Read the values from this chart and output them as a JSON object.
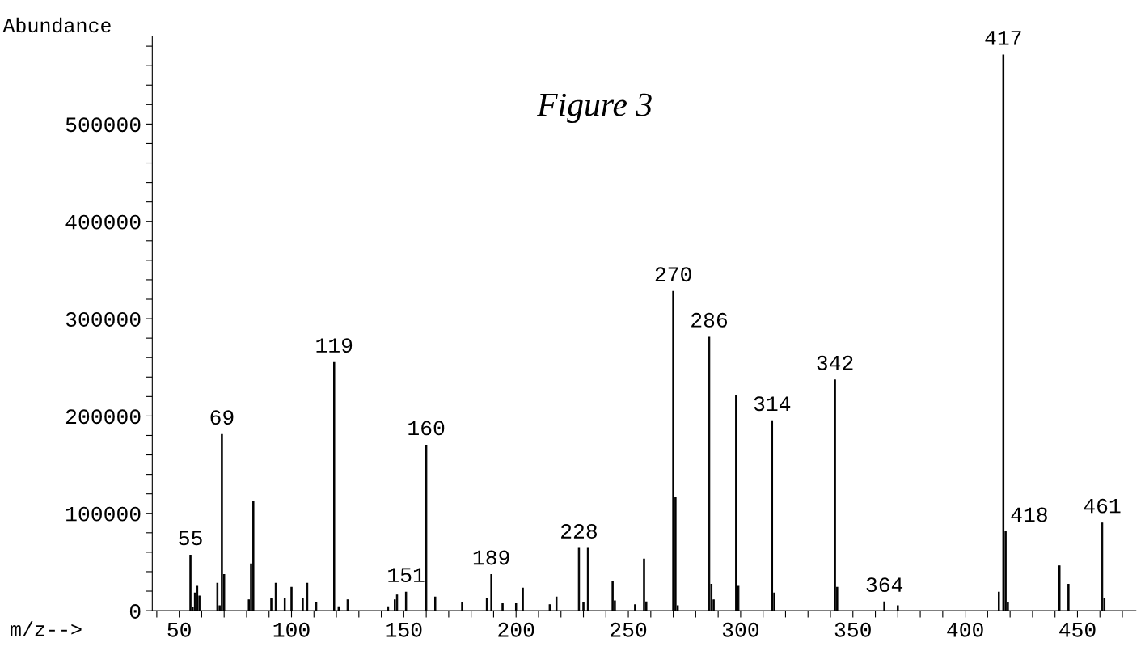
{
  "chart_data": {
    "type": "bar",
    "title": "Figure 3",
    "xlabel": "m/z-->",
    "ylabel": "Abundance",
    "x": [
      55,
      56,
      57,
      58,
      59,
      67,
      68,
      69,
      70,
      81,
      82,
      83,
      91,
      93,
      97,
      100,
      105,
      107,
      111,
      119,
      121,
      125,
      143,
      146,
      147,
      151,
      160,
      164,
      176,
      187,
      189,
      194,
      200,
      203,
      215,
      218,
      228,
      230,
      232,
      243,
      244,
      253,
      257,
      258,
      270,
      271,
      272,
      286,
      287,
      288,
      298,
      299,
      314,
      315,
      342,
      343,
      364,
      370,
      415,
      417,
      418,
      419,
      442,
      446,
      461,
      462
    ],
    "values": [
      57000,
      3000,
      18000,
      25000,
      15000,
      28000,
      5000,
      181000,
      37000,
      11000,
      48000,
      112000,
      12000,
      28000,
      12000,
      24000,
      12000,
      28000,
      8000,
      255000,
      4000,
      11000,
      4000,
      11000,
      16000,
      19000,
      170000,
      14000,
      8000,
      12000,
      37000,
      7000,
      7000,
      23000,
      6000,
      14000,
      64000,
      8000,
      64000,
      30000,
      10000,
      6000,
      53000,
      9000,
      328000,
      116000,
      5000,
      281000,
      27000,
      11000,
      221000,
      25000,
      195000,
      18000,
      237000,
      24000,
      9000,
      5000,
      19000,
      571000,
      81000,
      8000,
      46000,
      27000,
      90000,
      13000
    ],
    "color": "#000000",
    "annotations": [
      {
        "text": "55",
        "x": 55,
        "y": 57000
      },
      {
        "text": "69",
        "x": 69,
        "y": 181000
      },
      {
        "text": "119",
        "x": 119,
        "y": 255000
      },
      {
        "text": "151",
        "x": 151,
        "y": 19000
      },
      {
        "text": "160",
        "x": 160,
        "y": 170000
      },
      {
        "text": "189",
        "x": 189,
        "y": 37000
      },
      {
        "text": "228",
        "x": 228,
        "y": 64000
      },
      {
        "text": "270",
        "x": 270,
        "y": 328000
      },
      {
        "text": "286",
        "x": 286,
        "y": 281000
      },
      {
        "text": "314",
        "x": 314,
        "y": 195000
      },
      {
        "text": "342",
        "x": 342,
        "y": 237000
      },
      {
        "text": "364",
        "x": 364,
        "y": 9000
      },
      {
        "text": "417",
        "x": 417,
        "y": 571000
      },
      {
        "text": "418",
        "x": 418,
        "y": 81000
      },
      {
        "text": "461",
        "x": 461,
        "y": 90000
      }
    ],
    "xlim": [
      38,
      476
    ],
    "ylim": [
      0,
      590000
    ],
    "xticks": [
      {
        "value": 40,
        "label": null
      },
      50,
      {
        "value": 60,
        "label": null
      },
      {
        "value": 70,
        "label": null
      },
      {
        "value": 80,
        "label": null
      },
      {
        "value": 90,
        "label": null
      },
      100,
      {
        "value": 110,
        "label": null
      },
      {
        "value": 120,
        "label": null
      },
      {
        "value": 130,
        "label": null
      },
      {
        "value": 140,
        "label": null
      },
      150,
      {
        "value": 160,
        "label": null
      },
      {
        "value": 170,
        "label": null
      },
      {
        "value": 180,
        "label": null
      },
      {
        "value": 190,
        "label": null
      },
      200,
      {
        "value": 210,
        "label": null
      },
      {
        "value": 220,
        "label": null
      },
      {
        "value": 230,
        "label": null
      },
      {
        "value": 240,
        "label": null
      },
      250,
      {
        "value": 260,
        "label": null
      },
      {
        "value": 270,
        "label": null
      },
      {
        "value": 280,
        "label": null
      },
      {
        "value": 290,
        "label": null
      },
      300,
      {
        "value": 310,
        "label": null
      },
      {
        "value": 320,
        "label": null
      },
      {
        "value": 330,
        "label": null
      },
      {
        "value": 340,
        "label": null
      },
      350,
      {
        "value": 360,
        "label": null
      },
      {
        "value": 370,
        "label": null
      },
      {
        "value": 380,
        "label": null
      },
      {
        "value": 390,
        "label": null
      },
      400,
      {
        "value": 410,
        "label": null
      },
      {
        "value": 420,
        "label": null
      },
      {
        "value": 430,
        "label": null
      },
      {
        "value": 440,
        "label": null
      },
      450,
      {
        "value": 460,
        "label": null
      },
      {
        "value": 470,
        "label": null
      }
    ],
    "yticks": [
      0,
      {
        "value": 20000,
        "label": null
      },
      {
        "value": 40000,
        "label": null
      },
      {
        "value": 60000,
        "label": null
      },
      {
        "value": 80000,
        "label": null
      },
      100000,
      {
        "value": 120000,
        "label": null
      },
      {
        "value": 140000,
        "label": null
      },
      {
        "value": 160000,
        "label": null
      },
      {
        "value": 180000,
        "label": null
      },
      200000,
      {
        "value": 220000,
        "label": null
      },
      {
        "value": 240000,
        "label": null
      },
      {
        "value": 260000,
        "label": null
      },
      {
        "value": 280000,
        "label": null
      },
      300000,
      {
        "value": 320000,
        "label": null
      },
      {
        "value": 340000,
        "label": null
      },
      {
        "value": 360000,
        "label": null
      },
      {
        "value": 380000,
        "label": null
      },
      400000,
      {
        "value": 420000,
        "label": null
      },
      {
        "value": 440000,
        "label": null
      },
      {
        "value": 460000,
        "label": null
      },
      {
        "value": 480000,
        "label": null
      },
      500000,
      {
        "value": 520000,
        "label": null
      },
      {
        "value": 540000,
        "label": null
      },
      {
        "value": 560000,
        "label": null
      },
      {
        "value": 580000,
        "label": null
      }
    ],
    "grid": false,
    "legend": false
  }
}
